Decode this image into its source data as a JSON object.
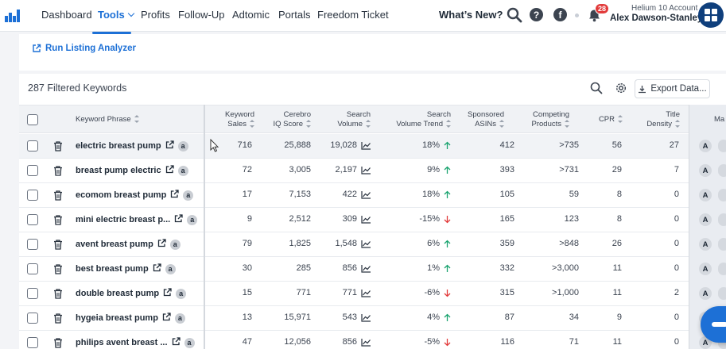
{
  "nav": {
    "items": [
      "Dashboard",
      "Tools",
      "Profits",
      "Follow-Up",
      "Adtomic",
      "Portals",
      "Freedom Ticket"
    ],
    "active": "Tools",
    "whats_new": "What’s New?",
    "notification_count": "28",
    "account_type": "Helium 10 Account",
    "account_name": "Alex Dawson-Stanley"
  },
  "toolbar": {
    "run_link": "Run Listing Analyzer",
    "filtered_count": "287 Filtered Keywords",
    "export_label": "Export Data..."
  },
  "columns": {
    "keyword": "Keyword Phrase",
    "sales": [
      "Keyword",
      "Sales"
    ],
    "iq": [
      "Cerebro",
      "IQ Score"
    ],
    "volume": [
      "Search",
      "Volume"
    ],
    "trend": [
      "Search",
      "Volume Trend"
    ],
    "sponsored": [
      "Sponsored",
      "ASINs"
    ],
    "competing": [
      "Competing",
      "Products"
    ],
    "cpr": "CPR",
    "density": [
      "Title",
      "Density"
    ],
    "more": "Ma"
  },
  "colors": {
    "accent": "#1d70d6",
    "up": "#1aa36f",
    "down": "#e23b3b"
  },
  "rows": [
    {
      "keyword": "electric breast pump",
      "sales": "716",
      "iq": "25,888",
      "volume": "19,028",
      "trend": "18%",
      "dir": "up",
      "sponsored": "412",
      "competing": ">735",
      "cpr": "56",
      "density": "27"
    },
    {
      "keyword": "breast pump electric",
      "sales": "72",
      "iq": "3,005",
      "volume": "2,197",
      "trend": "9%",
      "dir": "up",
      "sponsored": "393",
      "competing": ">731",
      "cpr": "29",
      "density": "7"
    },
    {
      "keyword": "ecomom breast pump",
      "sales": "17",
      "iq": "7,153",
      "volume": "422",
      "trend": "18%",
      "dir": "up",
      "sponsored": "105",
      "competing": "59",
      "cpr": "8",
      "density": "0"
    },
    {
      "keyword": "mini electric breast p...",
      "sales": "9",
      "iq": "2,512",
      "volume": "309",
      "trend": "-15%",
      "dir": "down",
      "sponsored": "165",
      "competing": "123",
      "cpr": "8",
      "density": "0"
    },
    {
      "keyword": "avent breast pump",
      "sales": "79",
      "iq": "1,825",
      "volume": "1,548",
      "trend": "6%",
      "dir": "up",
      "sponsored": "359",
      "competing": ">848",
      "cpr": "26",
      "density": "0"
    },
    {
      "keyword": "best breast pump",
      "sales": "30",
      "iq": "285",
      "volume": "856",
      "trend": "1%",
      "dir": "up",
      "sponsored": "332",
      "competing": ">3,000",
      "cpr": "11",
      "density": "0"
    },
    {
      "keyword": "double breast pump",
      "sales": "15",
      "iq": "771",
      "volume": "771",
      "trend": "-6%",
      "dir": "down",
      "sponsored": "315",
      "competing": ">1,000",
      "cpr": "11",
      "density": "2"
    },
    {
      "keyword": "hygeia breast pump",
      "sales": "13",
      "iq": "15,971",
      "volume": "543",
      "trend": "4%",
      "dir": "up",
      "sponsored": "87",
      "competing": "34",
      "cpr": "9",
      "density": "0"
    },
    {
      "keyword": "philips avent breast ...",
      "sales": "47",
      "iq": "12,056",
      "volume": "856",
      "trend": "-5%",
      "dir": "down",
      "sponsored": "116",
      "competing": "71",
      "cpr": "11",
      "density": "0"
    }
  ]
}
